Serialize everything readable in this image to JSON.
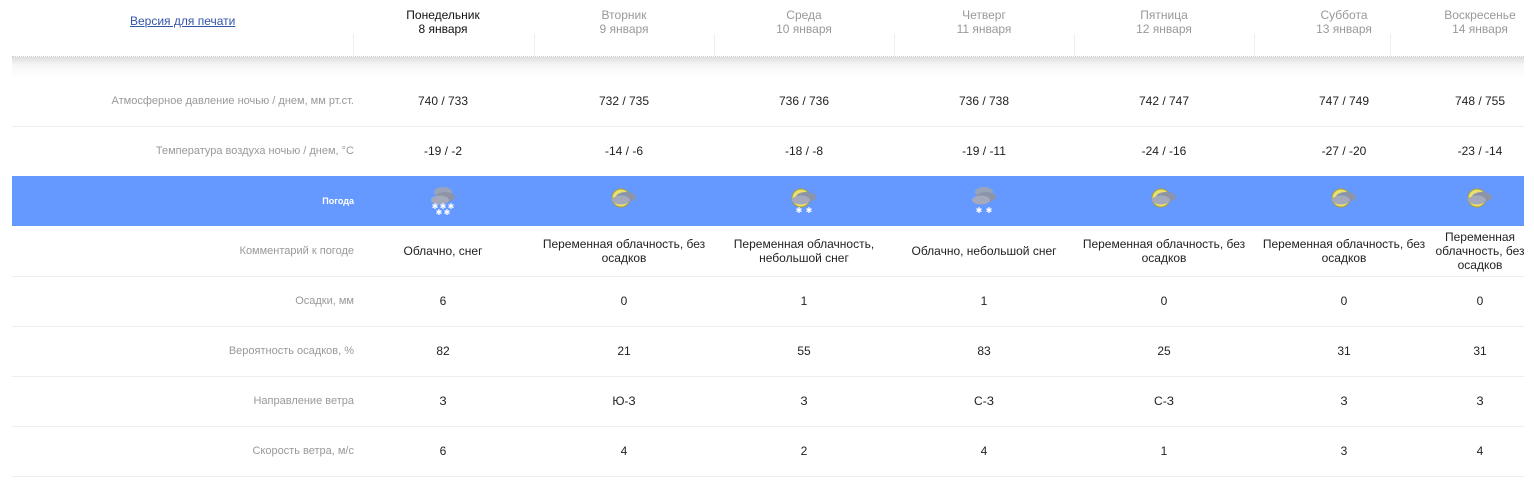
{
  "print_link": "Версия для печати",
  "days": [
    {
      "name": "Понедельник",
      "date": "8 января",
      "current": true
    },
    {
      "name": "Вторник",
      "date": "9 января"
    },
    {
      "name": "Среда",
      "date": "10 января"
    },
    {
      "name": "Четверг",
      "date": "11 января"
    },
    {
      "name": "Пятница",
      "date": "12 января"
    },
    {
      "name": "Суббота",
      "date": "13 января"
    },
    {
      "name": "Воскресенье",
      "date": "14 января"
    }
  ],
  "rows": {
    "pressure": {
      "label": "Атмосферное давление ночью / днем, мм рт.ст.",
      "values": [
        "740 / 733",
        "732 / 735",
        "736 / 736",
        "736 / 738",
        "742 / 747",
        "747 / 749",
        "748 / 755"
      ]
    },
    "temperature": {
      "label": "Температура воздуха ночью / днем, °C",
      "values": [
        "-19 / -2",
        "-14 / -6",
        "-18 / -8",
        "-19 / -11",
        "-24 / -16",
        "-27 / -20",
        "-23 / -14"
      ]
    },
    "weather": {
      "label": "Погода",
      "icons": [
        "cloudy-snow-icon",
        "moon-cloud-icon",
        "moon-cloud-light-snow-icon",
        "cloudy-light-snow-icon",
        "moon-cloud-icon",
        "moon-cloud-icon",
        "moon-cloud-icon"
      ],
      "color": "#6699ff"
    },
    "comment": {
      "label": "Комментарий к погоде",
      "values": [
        "Облачно, снег",
        "Переменная облачность, без осадков",
        "Переменная облачность, небольшой снег",
        "Облачно, небольшой снег",
        "Переменная облачность, без осадков",
        "Переменная облачность, без осадков",
        "Переменная облачность, без осадков"
      ]
    },
    "precip": {
      "label": "Осадки, мм",
      "values": [
        "6",
        "0",
        "1",
        "1",
        "0",
        "0",
        "0"
      ]
    },
    "probability": {
      "label": "Вероятность осадков, %",
      "values": [
        "82",
        "21",
        "55",
        "83",
        "25",
        "31",
        "31"
      ]
    },
    "wind_dir": {
      "label": "Направление ветра",
      "values": [
        "З",
        "Ю-З",
        "З",
        "С-З",
        "С-З",
        "З",
        "З"
      ]
    },
    "wind_speed": {
      "label": "Скорость ветра, м/с",
      "values": [
        "6",
        "4",
        "2",
        "4",
        "1",
        "3",
        "4"
      ]
    }
  }
}
